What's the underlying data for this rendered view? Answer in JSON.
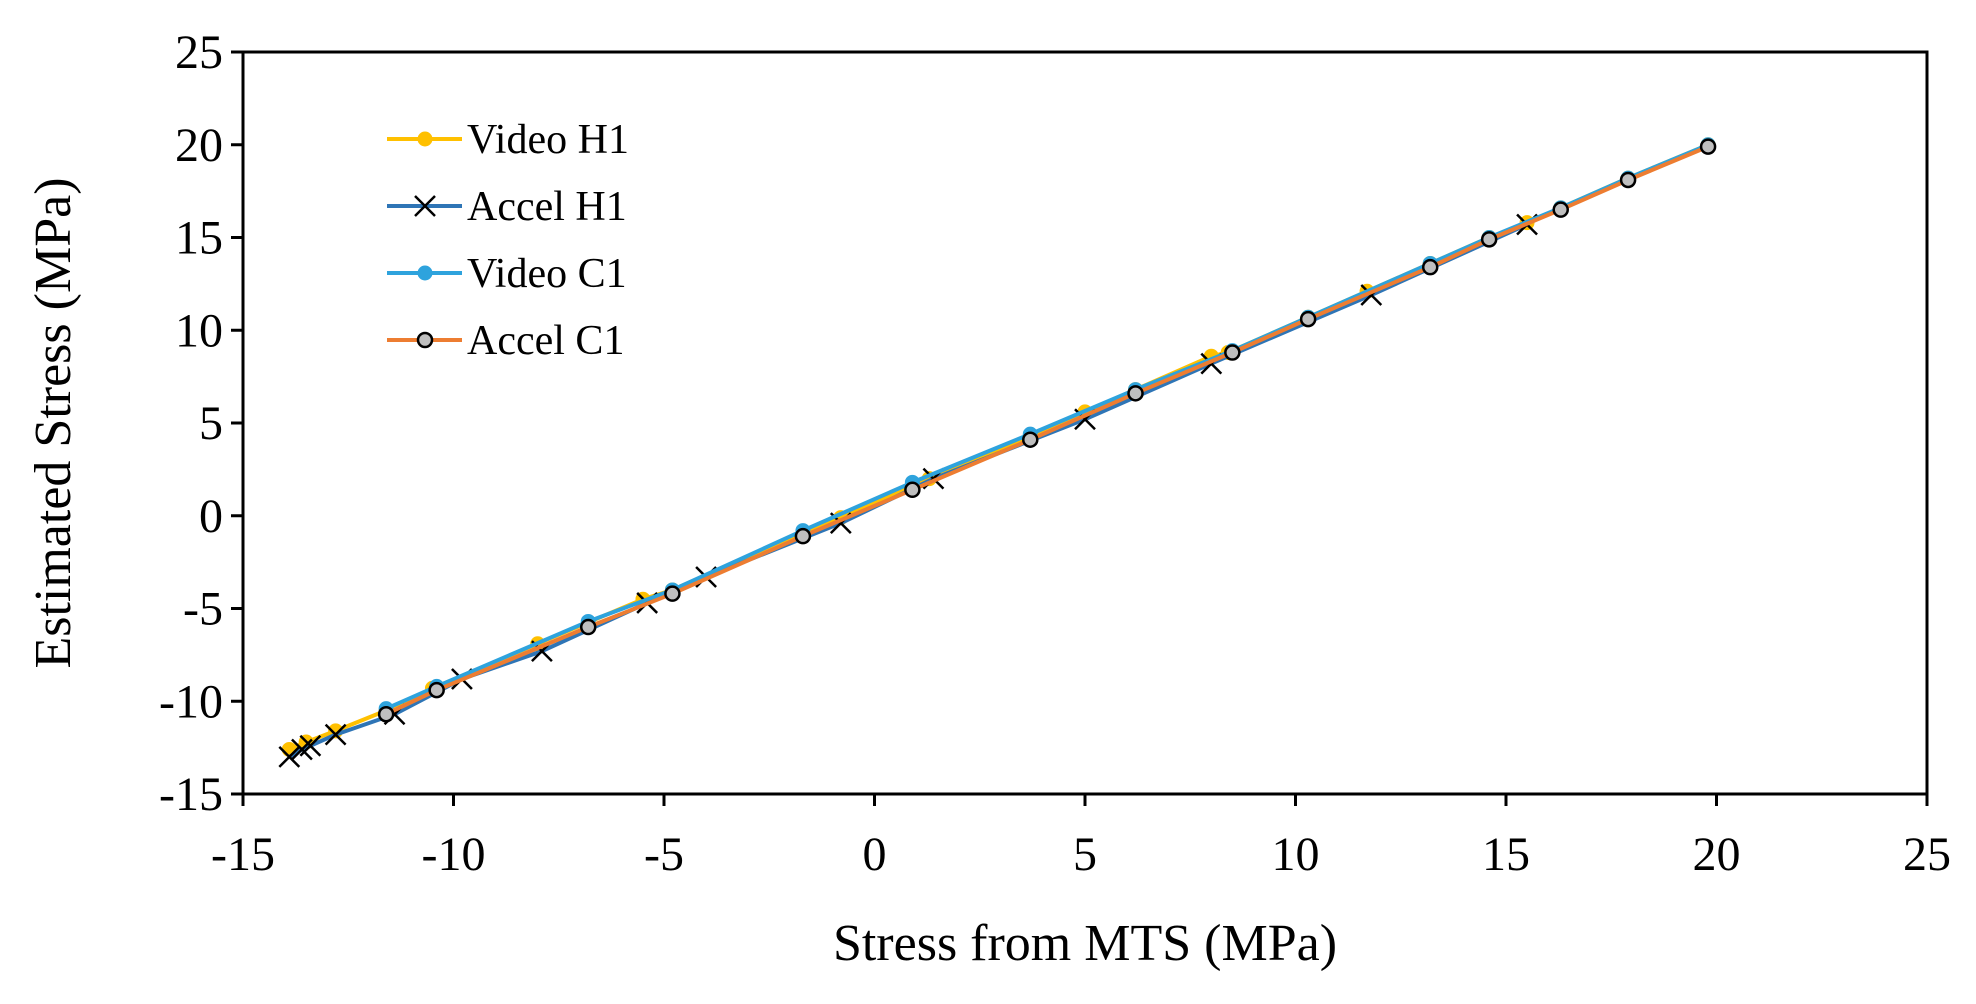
{
  "chart_data": {
    "type": "line",
    "title": "",
    "xlabel": "Stress from MTS (MPa)",
    "ylabel": "Estimated Stress (MPa)",
    "xlim": [
      -15,
      25
    ],
    "ylim": [
      -15,
      25
    ],
    "xticks": [
      -15,
      -10,
      -5,
      0,
      5,
      10,
      15,
      20,
      25
    ],
    "yticks": [
      -15,
      -10,
      -5,
      0,
      5,
      10,
      15,
      20,
      25
    ],
    "xtick_labels": [
      "-15",
      "-10",
      "-5",
      "0",
      "5",
      "10",
      "15",
      "20",
      "25"
    ],
    "ytick_labels": [
      "-15",
      "-10",
      "-5",
      "0",
      "5",
      "10",
      "15",
      "20",
      "25"
    ],
    "grid": false,
    "legend_position": "top-left",
    "series": [
      {
        "name": "Video H1",
        "color": "#FFC000",
        "marker": "filled-circle",
        "x": [
          -13.9,
          -13.5,
          -12.8,
          -11.6,
          -10.5,
          -8,
          -5.5,
          -4.8,
          -1.7,
          -0.8,
          0.9,
          1.3,
          3.7,
          5,
          6.2,
          8,
          8.4,
          10.3,
          11.7,
          13.2,
          14.6,
          15.5,
          16.3,
          17.9,
          19.8
        ],
        "y": [
          -12.6,
          -12.2,
          -11.6,
          -10.5,
          -9.3,
          -6.9,
          -4.5,
          -4,
          -0.9,
          -0.1,
          1.6,
          2,
          4.3,
          5.6,
          6.8,
          8.6,
          8.8,
          10.7,
          12.1,
          13.6,
          15,
          15.8,
          16.6,
          18.2,
          20
        ]
      },
      {
        "name": "Accel H1",
        "color": "#2E75B6",
        "marker": "x",
        "x": [
          -13.9,
          -13.6,
          -13.4,
          -12.8,
          -11.4,
          -9.8,
          -7.9,
          -5.4,
          -4,
          -0.8,
          1.4,
          5,
          8,
          11.8,
          15.5
        ],
        "y": [
          -13,
          -12.6,
          -12.4,
          -11.8,
          -10.7,
          -8.8,
          -7.3,
          -4.7,
          -3.3,
          -0.4,
          2,
          5.2,
          8.2,
          11.9,
          15.7
        ]
      },
      {
        "name": "Video C1",
        "color": "#2EA3DD",
        "marker": "filled-circle",
        "x": [
          -11.6,
          -10.4,
          -6.8,
          -4.8,
          -1.7,
          0.9,
          3.7,
          6.2,
          8.5,
          10.3,
          13.2,
          14.6,
          16.3,
          17.9,
          19.8
        ],
        "y": [
          -10.4,
          -9.2,
          -5.7,
          -4,
          -0.8,
          1.8,
          4.4,
          6.8,
          8.9,
          10.7,
          13.6,
          15,
          16.6,
          18.2,
          20
        ]
      },
      {
        "name": "Accel C1",
        "color": "#ED7D31",
        "marker": "open-circle",
        "x": [
          -11.6,
          -10.4,
          -6.8,
          -4.8,
          -1.7,
          0.9,
          3.7,
          6.2,
          8.5,
          10.3,
          13.2,
          14.6,
          16.3,
          17.9,
          19.8
        ],
        "y": [
          -10.7,
          -9.4,
          -6,
          -4.2,
          -1.1,
          1.4,
          4.1,
          6.6,
          8.8,
          10.6,
          13.4,
          14.9,
          16.5,
          18.1,
          19.9
        ]
      }
    ]
  }
}
